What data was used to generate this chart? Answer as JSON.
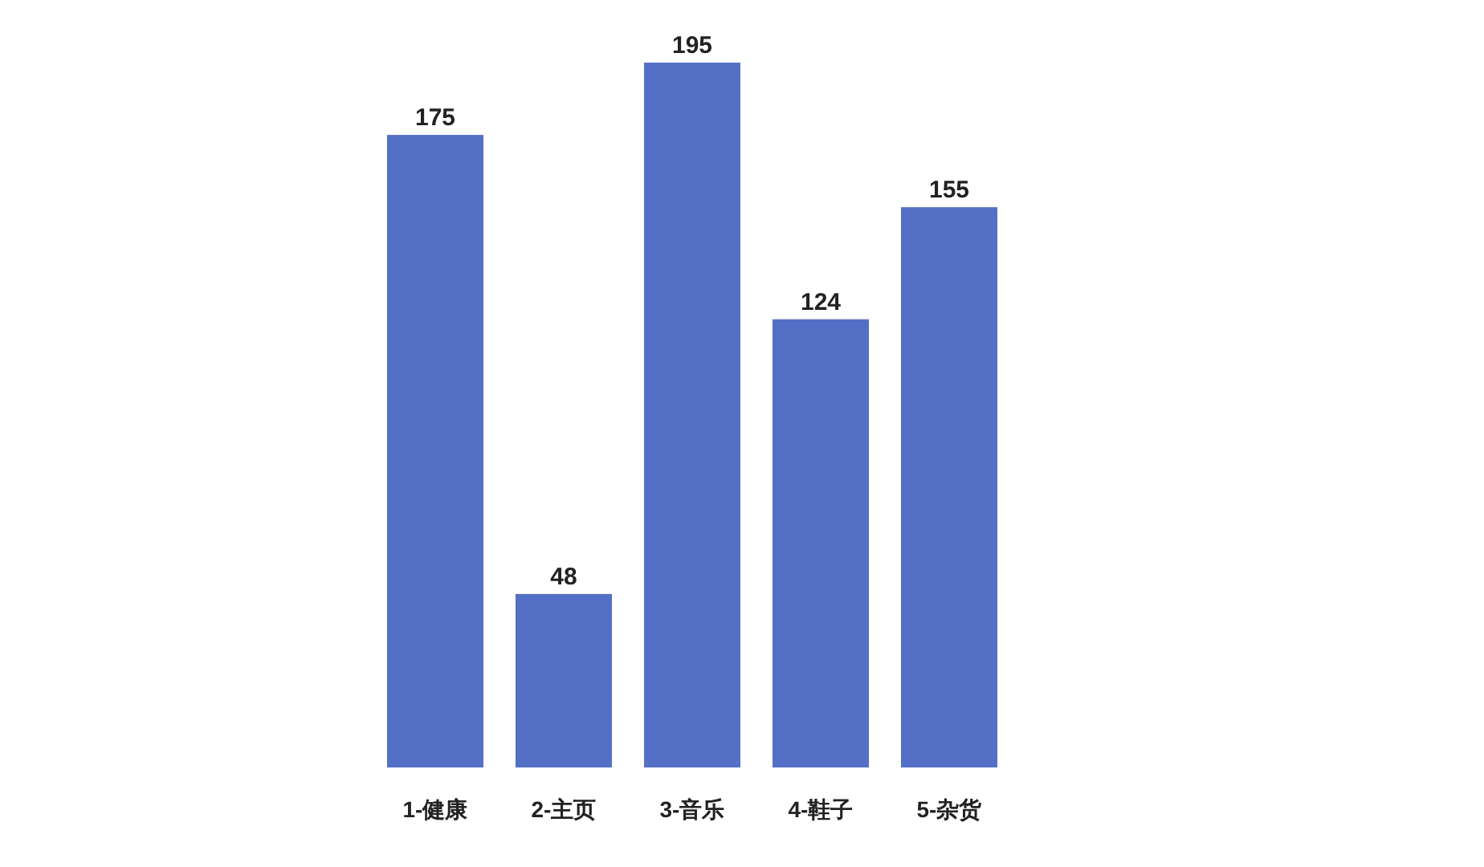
{
  "chart_data": {
    "type": "bar",
    "categories": [
      "1-健康",
      "2-主页",
      "3-音乐",
      "4-鞋子",
      "5-杂货"
    ],
    "values": [
      175,
      48,
      195,
      124,
      155
    ],
    "color": "#5470c6",
    "data_labels": true,
    "grid": false
  }
}
